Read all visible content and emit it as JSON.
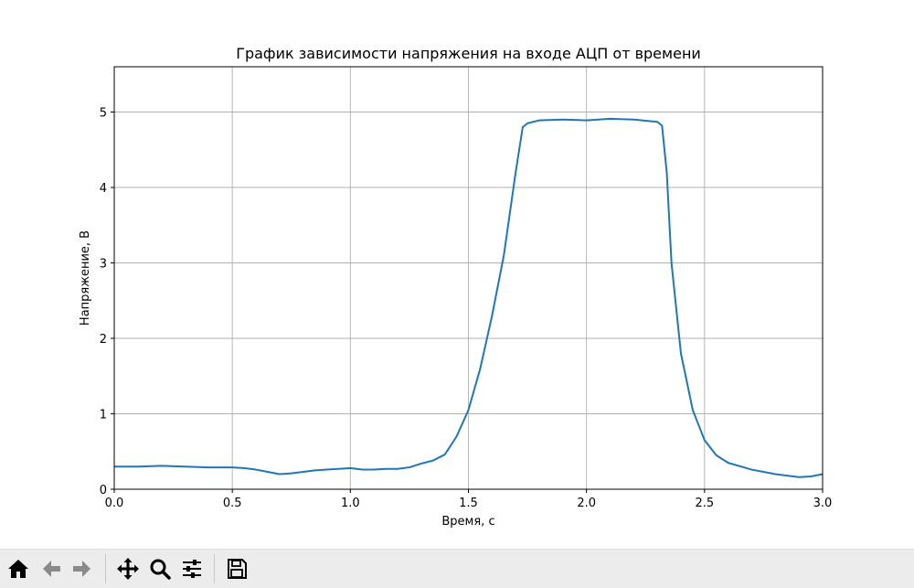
{
  "chart_data": {
    "type": "line",
    "title": "График зависимости напряжения на входе АЦП от времени",
    "xlabel": "Время, с",
    "ylabel": "Напряжение, В",
    "xlim": [
      0,
      3
    ],
    "ylim": [
      0,
      5.6
    ],
    "xticks": [
      0.0,
      0.5,
      1.0,
      1.5,
      2.0,
      2.5,
      3.0
    ],
    "xtick_labels": [
      "0.0",
      "0.5",
      "1.0",
      "1.5",
      "2.0",
      "2.5",
      "3.0"
    ],
    "yticks": [
      0,
      1,
      2,
      3,
      4,
      5
    ],
    "ytick_labels": [
      "0",
      "1",
      "2",
      "3",
      "4",
      "5"
    ],
    "grid": true,
    "series": [
      {
        "color": "#1f77b4",
        "x": [
          0.0,
          0.1,
          0.2,
          0.3,
          0.4,
          0.5,
          0.55,
          0.6,
          0.65,
          0.7,
          0.75,
          0.8,
          0.85,
          0.9,
          0.95,
          1.0,
          1.05,
          1.1,
          1.15,
          1.2,
          1.25,
          1.3,
          1.35,
          1.4,
          1.45,
          1.5,
          1.55,
          1.6,
          1.65,
          1.7,
          1.73,
          1.75,
          1.8,
          1.9,
          2.0,
          2.1,
          2.2,
          2.3,
          2.32,
          2.34,
          2.36,
          2.4,
          2.45,
          2.5,
          2.55,
          2.6,
          2.7,
          2.8,
          2.9,
          2.95,
          3.0
        ],
        "y": [
          0.3,
          0.3,
          0.31,
          0.3,
          0.29,
          0.29,
          0.28,
          0.26,
          0.23,
          0.2,
          0.21,
          0.23,
          0.25,
          0.26,
          0.27,
          0.28,
          0.26,
          0.26,
          0.27,
          0.27,
          0.29,
          0.34,
          0.38,
          0.46,
          0.7,
          1.05,
          1.6,
          2.3,
          3.1,
          4.2,
          4.8,
          4.85,
          4.89,
          4.9,
          4.89,
          4.91,
          4.9,
          4.87,
          4.82,
          4.2,
          3.0,
          1.8,
          1.05,
          0.65,
          0.45,
          0.35,
          0.26,
          0.2,
          0.16,
          0.17,
          0.2
        ]
      }
    ]
  },
  "toolbar": {
    "home_icon": "home-icon",
    "back_icon": "arrow-left-icon",
    "forward_icon": "arrow-right-icon",
    "pan_icon": "move-icon",
    "zoom_icon": "magnifier-icon",
    "configure_icon": "sliders-icon",
    "save_icon": "floppy-disk-icon"
  }
}
